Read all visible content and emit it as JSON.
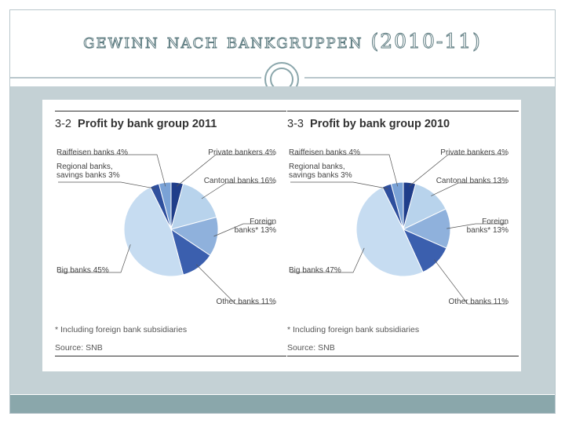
{
  "slide": {
    "title": "Gewinn nach Bankgruppen (2010-11)"
  },
  "panels": [
    {
      "number": "3-2",
      "title": "Profit by bank group 2011",
      "footnote": "* Including foreign bank subsidiaries",
      "source": "Source: SNB"
    },
    {
      "number": "3-3",
      "title": "Profit by bank group 2010",
      "footnote": "* Including foreign bank subsidiaries",
      "source": "Source: SNB"
    }
  ],
  "chart_data": [
    {
      "type": "pie",
      "title": "Profit by bank group 2011",
      "slices": [
        {
          "name": "Private bankers",
          "label": [
            "Private bankers 4%"
          ],
          "value": 4,
          "color": "#1f3d8a"
        },
        {
          "name": "Cantonal banks",
          "label": [
            "Cantonal banks 16%"
          ],
          "value": 16,
          "color": "#b8d3ec"
        },
        {
          "name": "Foreign banks*",
          "label": [
            "Foreign",
            "banks* 13%"
          ],
          "value": 13,
          "color": "#8fb1dc"
        },
        {
          "name": "Other banks",
          "label": [
            "Other banks 11%"
          ],
          "value": 11,
          "color": "#3b5fae"
        },
        {
          "name": "Big banks",
          "label": [
            "Big banks 45%"
          ],
          "value": 45,
          "color": "#c6dcf1"
        },
        {
          "name": "Regional banks, savings banks",
          "label": [
            "Regional banks,",
            "savings banks 3%"
          ],
          "value": 3,
          "color": "#2e4f9e"
        },
        {
          "name": "Raiffeisen banks",
          "label": [
            "Raiffeisen banks 4%"
          ],
          "value": 4,
          "color": "#7aa2d6"
        }
      ]
    },
    {
      "type": "pie",
      "title": "Profit by bank group 2010",
      "slices": [
        {
          "name": "Private bankers",
          "label": [
            "Private bankers 4%"
          ],
          "value": 4,
          "color": "#1f3d8a"
        },
        {
          "name": "Cantonal banks",
          "label": [
            "Cantonal banks 13%"
          ],
          "value": 13,
          "color": "#b8d3ec"
        },
        {
          "name": "Foreign banks*",
          "label": [
            "Foreign",
            "banks* 13%"
          ],
          "value": 13,
          "color": "#8fb1dc"
        },
        {
          "name": "Other banks",
          "label": [
            "Other banks 11%"
          ],
          "value": 11,
          "color": "#3b5fae"
        },
        {
          "name": "Big banks",
          "label": [
            "Big banks 47%"
          ],
          "value": 47,
          "color": "#c6dcf1"
        },
        {
          "name": "Regional banks, savings banks",
          "label": [
            "Regional banks,",
            "savings banks 3%"
          ],
          "value": 3,
          "color": "#2e4f9e"
        },
        {
          "name": "Raiffeisen banks",
          "label": [
            "Raiffeisen banks 4%"
          ],
          "value": 4,
          "color": "#7aa2d6"
        }
      ]
    }
  ]
}
